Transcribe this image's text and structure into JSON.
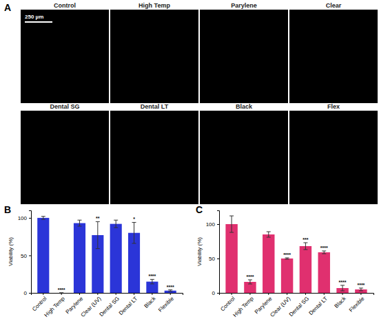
{
  "panel_a": {
    "annotations": [
      "A"
    ],
    "scale_bar": "250 µm",
    "labels": [
      "Control",
      "High Temp",
      "Parylene",
      "Clear",
      "Dental SG",
      "Dental LT",
      "Black",
      "Flex"
    ]
  },
  "chart_data": [
    {
      "type": "bar",
      "annotations": [
        "B"
      ],
      "y_label": "Viability (%)",
      "categories": [
        "Control",
        "High Temp",
        "Parylene",
        "Clear (UV)",
        "Dental SG",
        "Dental LT",
        "Black",
        "Flexible"
      ],
      "values": [
        100,
        0,
        93,
        77,
        92,
        80,
        15,
        3
      ],
      "errors": [
        2,
        0,
        4,
        18,
        5,
        14,
        3,
        1
      ],
      "significance": [
        null,
        "****",
        null,
        "**",
        null,
        "*",
        "****",
        "****"
      ],
      "color": "#2b35d8",
      "ylim": [
        0,
        110
      ],
      "yticks": [
        0,
        50,
        100
      ],
      "grid": false
    },
    {
      "type": "bar",
      "annotations": [
        "C"
      ],
      "y_label": "Viability (%)",
      "categories": [
        "Control",
        "High Temp",
        "Parylene",
        "Clear (UV)",
        "Dental SG",
        "Dental LT",
        "Black",
        "Flexible"
      ],
      "values": [
        100,
        16,
        85,
        50,
        68,
        59,
        7,
        5
      ],
      "errors": [
        12,
        3,
        4,
        1,
        5,
        2,
        4,
        2
      ],
      "significance": [
        null,
        "****",
        null,
        "****",
        "***",
        "****",
        "****",
        "****"
      ],
      "color": "#e0306f",
      "ylim": [
        0,
        120
      ],
      "yticks": [
        0,
        50,
        100
      ],
      "grid": false
    }
  ]
}
